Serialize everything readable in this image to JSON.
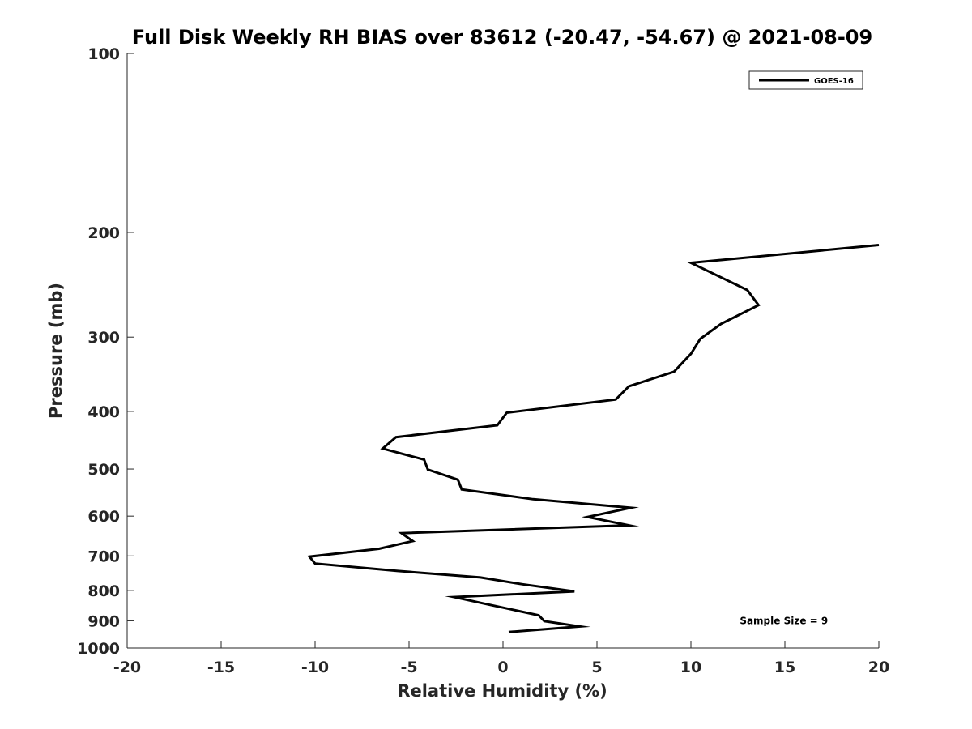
{
  "chart_data": {
    "type": "line",
    "title": "Full Disk Weekly RH BIAS over 83612 (-20.47, -54.67) @ 2021-08-09",
    "xlabel": "Relative Humidity (%)",
    "ylabel": "Pressure (mb)",
    "xlim": [
      -20,
      20
    ],
    "ylim": [
      100,
      1000
    ],
    "y_scale": "log",
    "y_reversed": true,
    "xticks": [
      -20,
      -15,
      -10,
      -5,
      0,
      5,
      10,
      15,
      20
    ],
    "xtick_labels": [
      "-20",
      "-15",
      "-10",
      "-5",
      "0",
      "5",
      "10",
      "15",
      "20"
    ],
    "yticks": [
      100,
      200,
      300,
      400,
      500,
      600,
      700,
      800,
      900,
      1000
    ],
    "ytick_labels": [
      "100",
      "200",
      "300",
      "400",
      "500",
      "600",
      "700",
      "800",
      "900",
      "1000"
    ],
    "grid": false,
    "legend_position": "top-right",
    "series": [
      {
        "name": "GOES-16",
        "color": "#000000",
        "points": [
          {
            "x": 20.0,
            "y": 210
          },
          {
            "x": 10.0,
            "y": 225
          },
          {
            "x": 13.0,
            "y": 250
          },
          {
            "x": 13.6,
            "y": 265
          },
          {
            "x": 11.6,
            "y": 285
          },
          {
            "x": 10.5,
            "y": 302
          },
          {
            "x": 10.0,
            "y": 320
          },
          {
            "x": 9.1,
            "y": 343
          },
          {
            "x": 6.7,
            "y": 363
          },
          {
            "x": 6.0,
            "y": 382
          },
          {
            "x": 0.2,
            "y": 402
          },
          {
            "x": -0.3,
            "y": 422
          },
          {
            "x": -5.7,
            "y": 442
          },
          {
            "x": -6.4,
            "y": 462
          },
          {
            "x": -4.2,
            "y": 482
          },
          {
            "x": -4.0,
            "y": 501
          },
          {
            "x": -2.4,
            "y": 521
          },
          {
            "x": -2.2,
            "y": 541
          },
          {
            "x": 1.6,
            "y": 562
          },
          {
            "x": 6.8,
            "y": 581
          },
          {
            "x": 4.5,
            "y": 602
          },
          {
            "x": 6.7,
            "y": 622
          },
          {
            "x": -5.4,
            "y": 641
          },
          {
            "x": -4.8,
            "y": 661
          },
          {
            "x": -6.6,
            "y": 681
          },
          {
            "x": -10.3,
            "y": 702
          },
          {
            "x": -10.0,
            "y": 721
          },
          {
            "x": -5.6,
            "y": 742
          },
          {
            "x": -1.2,
            "y": 761
          },
          {
            "x": 1.0,
            "y": 781
          },
          {
            "x": 3.8,
            "y": 803
          },
          {
            "x": -2.6,
            "y": 821
          },
          {
            "x": -1.0,
            "y": 842
          },
          {
            "x": 1.9,
            "y": 881
          },
          {
            "x": 2.2,
            "y": 901
          },
          {
            "x": 4.1,
            "y": 920
          },
          {
            "x": 0.3,
            "y": 940
          }
        ]
      }
    ],
    "annotations": [
      {
        "text": "Sample Size = 9",
        "x": 12.6,
        "y": 900
      }
    ]
  }
}
